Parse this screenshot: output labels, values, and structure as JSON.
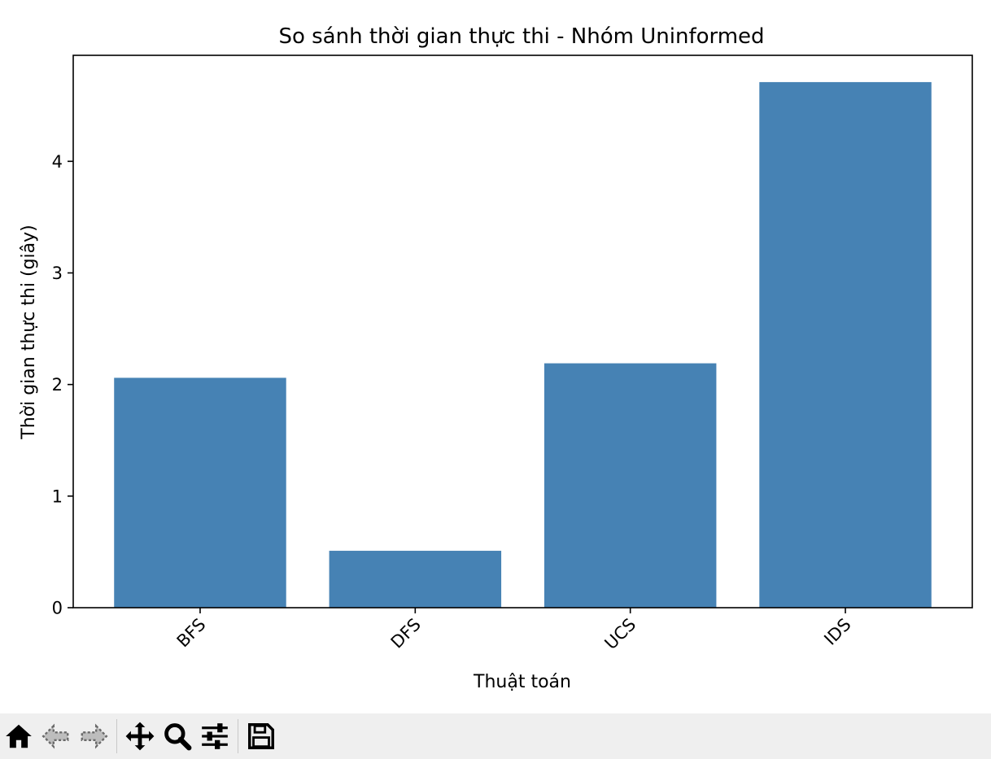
{
  "chart_data": {
    "type": "bar",
    "title": "So sánh thời gian thực thi - Nhóm Uninformed",
    "xlabel": "Thuật toán",
    "ylabel": "Thời gian thực thi (giây)",
    "categories": [
      "BFS",
      "DFS",
      "UCS",
      "IDS"
    ],
    "values": [
      2.06,
      0.51,
      2.19,
      4.71
    ],
    "ylim": [
      0,
      4.95
    ],
    "yticks": [
      0,
      1,
      2,
      3,
      4
    ],
    "xtick_rotation_deg": 45,
    "bar_color": "#4682b4",
    "grid": false,
    "legend": "none"
  },
  "toolbar": {
    "buttons": [
      {
        "name": "home-button",
        "icon": "home-icon"
      },
      {
        "name": "back-button",
        "icon": "arrow-left-icon"
      },
      {
        "name": "forward-button",
        "icon": "arrow-right-icon"
      },
      {
        "name": "pan-button",
        "icon": "move-icon"
      },
      {
        "name": "zoom-button",
        "icon": "magnifier-icon"
      },
      {
        "name": "configure-subplots-button",
        "icon": "sliders-icon"
      },
      {
        "name": "save-button",
        "icon": "floppy-disk-icon"
      }
    ]
  }
}
